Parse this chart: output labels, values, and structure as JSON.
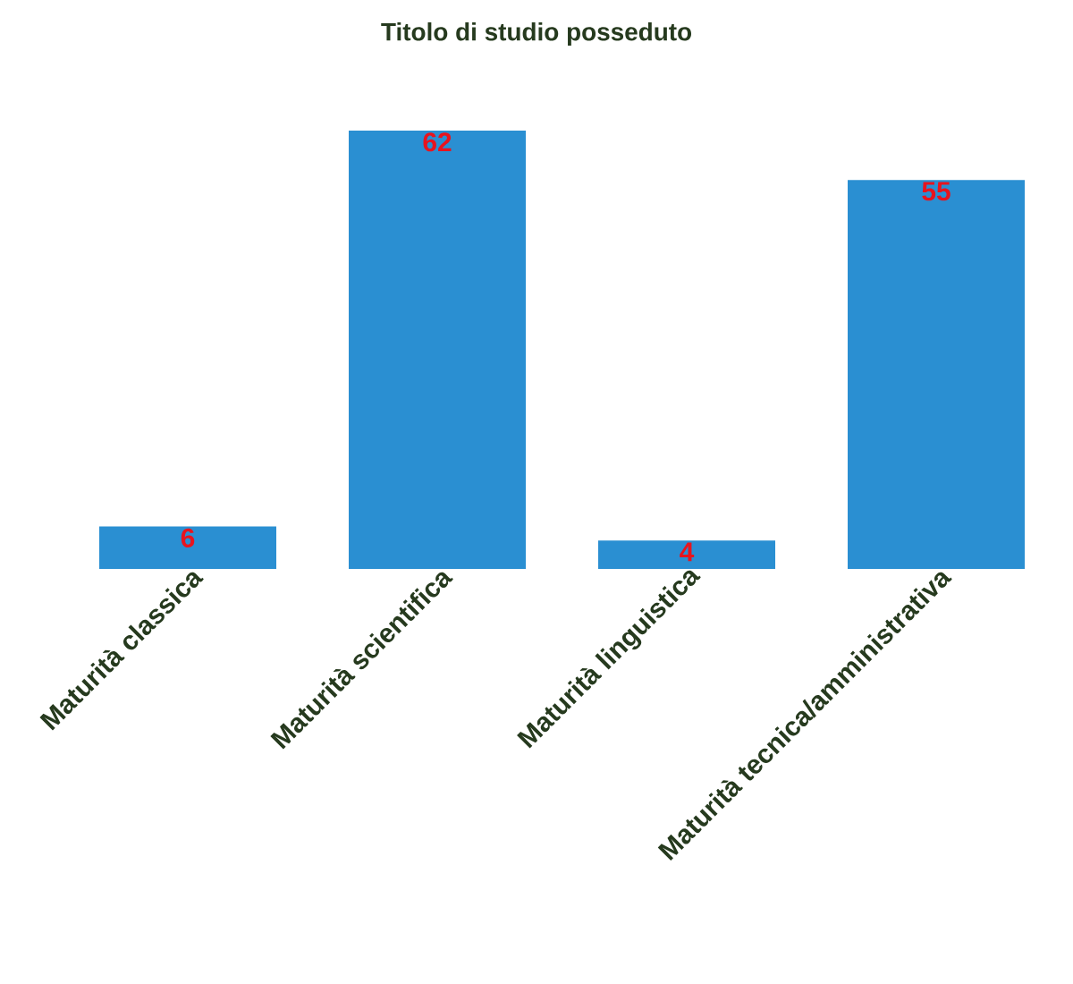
{
  "chart_data": {
    "type": "bar",
    "title": "Titolo di studio posseduto",
    "categories": [
      "Maturità classica",
      "Maturità scientifica",
      "Maturità linguistica",
      "Maturità tecnica/amministrativa"
    ],
    "values": [
      6,
      62,
      4,
      55
    ],
    "color": "#2a8fd2",
    "data_labels": true
  }
}
